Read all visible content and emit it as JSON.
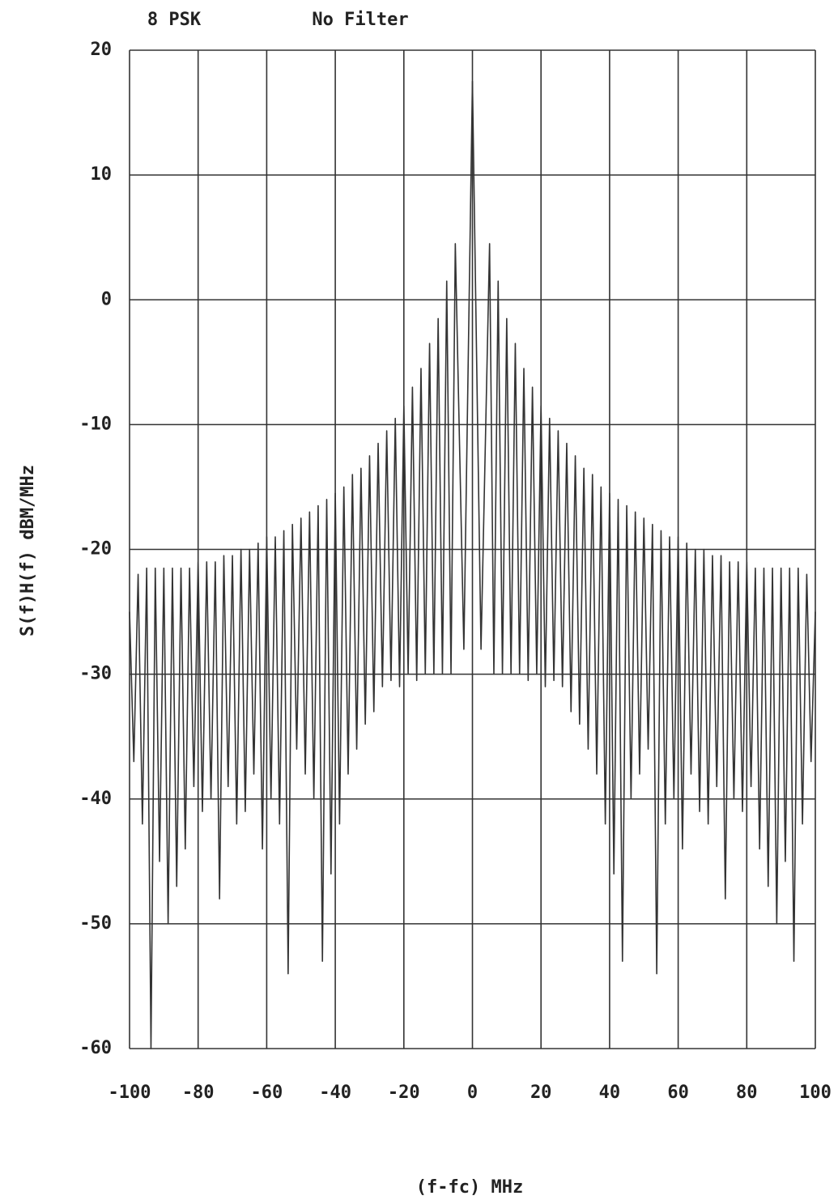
{
  "chart_data": {
    "type": "line",
    "title": "8 PSK",
    "subtitle": "No Filter",
    "xlabel": "(f-fc) MHz",
    "ylabel": "S(f)H(f) dBM/MHz",
    "xlim": [
      -100,
      100
    ],
    "ylim": [
      -60,
      20
    ],
    "xticks": [
      -100,
      -80,
      -60,
      -40,
      -20,
      0,
      20,
      40,
      60,
      80,
      100
    ],
    "yticks": [
      -60,
      -50,
      -40,
      -30,
      -20,
      -10,
      0,
      10,
      20
    ],
    "grid": true,
    "x": [
      -100,
      -98.75,
      -97.5,
      -96.25,
      -95,
      -93.75,
      -92.5,
      -91.25,
      -90,
      -88.75,
      -87.5,
      -86.25,
      -85,
      -83.75,
      -82.5,
      -81.25,
      -80,
      -78.75,
      -77.5,
      -76.25,
      -75,
      -73.75,
      -72.5,
      -71.25,
      -70,
      -68.75,
      -67.5,
      -66.25,
      -65,
      -63.75,
      -62.5,
      -61.25,
      -60,
      -58.75,
      -57.5,
      -56.25,
      -55,
      -53.75,
      -52.5,
      -51.25,
      -50,
      -48.75,
      -47.5,
      -46.25,
      -45,
      -43.75,
      -42.5,
      -41.25,
      -40,
      -38.75,
      -37.5,
      -36.25,
      -35,
      -33.75,
      -32.5,
      -31.25,
      -30,
      -28.75,
      -27.5,
      -26.25,
      -25,
      -23.75,
      -22.5,
      -21.25,
      -20,
      -18.75,
      -17.5,
      -16.25,
      -15,
      -13.75,
      -12.5,
      -11.25,
      -10,
      -8.75,
      -7.5,
      -6.25,
      -5,
      -2.5,
      0,
      2.5,
      5,
      6.25,
      7.5,
      8.75,
      10,
      11.25,
      12.5,
      13.75,
      15,
      16.25,
      17.5,
      18.75,
      20,
      21.25,
      22.5,
      23.75,
      25,
      26.25,
      27.5,
      28.75,
      30,
      31.25,
      32.5,
      33.75,
      35,
      36.25,
      37.5,
      38.75,
      40,
      41.25,
      42.5,
      43.75,
      45,
      46.25,
      47.5,
      48.75,
      50,
      51.25,
      52.5,
      53.75,
      55,
      56.25,
      57.5,
      58.75,
      60,
      61.25,
      62.5,
      63.75,
      65,
      66.25,
      67.5,
      68.75,
      70,
      71.25,
      72.5,
      73.75,
      75,
      76.25,
      77.5,
      78.75,
      80,
      81.25,
      82.5,
      83.75,
      85,
      86.25,
      87.5,
      88.75,
      90,
      91.25,
      92.5,
      93.75,
      95,
      96.25,
      97.5,
      98.75,
      100
    ],
    "series": [
      {
        "name": "S(f)H(f)",
        "color": "#333333",
        "values": [
          -25,
          -37,
          -22,
          -42,
          -21.5,
          -60,
          -21.5,
          -45,
          -21.5,
          -50,
          -21.5,
          -47,
          -21.5,
          -44,
          -21.5,
          -39,
          -21,
          -41,
          -21,
          -40,
          -21,
          -48,
          -20.5,
          -39,
          -20.5,
          -42,
          -20,
          -41,
          -20,
          -38,
          -19.5,
          -44,
          -19,
          -40,
          -19,
          -42,
          -18.5,
          -54,
          -18,
          -36,
          -17.5,
          -38,
          -17,
          -40,
          -16.5,
          -53,
          -16,
          -46,
          -15.5,
          -42,
          -15,
          -38,
          -14,
          -36,
          -13.5,
          -34,
          -12.5,
          -33,
          -11.5,
          -31,
          -10.5,
          -30.5,
          -9.5,
          -31,
          -8.5,
          -30,
          -7,
          -30.5,
          -5.5,
          -30,
          -3.5,
          -30,
          -1.5,
          -30,
          1.5,
          -30,
          4.5,
          -28,
          17.5,
          -28,
          4.5,
          -30,
          1.5,
          -30,
          -1.5,
          -30,
          -3.5,
          -30,
          -5.5,
          -30.5,
          -7,
          -30,
          -8.5,
          -31,
          -9.5,
          -30.5,
          -10.5,
          -31,
          -11.5,
          -33,
          -12.5,
          -34,
          -13.5,
          -36,
          -14,
          -38,
          -15,
          -42,
          -15.5,
          -46,
          -16,
          -53,
          -16.5,
          -40,
          -17,
          -38,
          -17.5,
          -36,
          -18,
          -54,
          -18.5,
          -42,
          -19,
          -40,
          -19,
          -44,
          -19.5,
          -38,
          -20,
          -41,
          -20,
          -42,
          -20.5,
          -39,
          -20.5,
          -48,
          -21,
          -40,
          -21,
          -41,
          -21,
          -39,
          -21.5,
          -44,
          -21.5,
          -47,
          -21.5,
          -50,
          -21.5,
          -45,
          -21.5,
          -53,
          -21.5,
          -42,
          -22,
          -37,
          -25
        ]
      }
    ]
  }
}
